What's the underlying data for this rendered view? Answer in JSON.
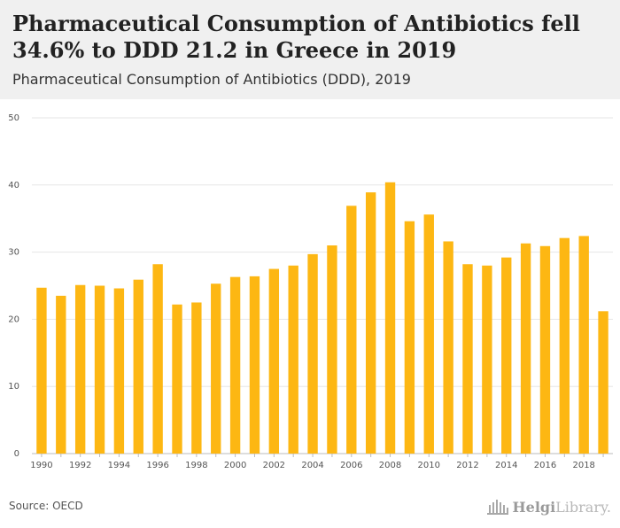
{
  "header": {
    "title": "Pharmaceutical Consumption of Antibiotics fell 34.6% to DDD 21.2 in Greece in 2019",
    "subtitle": "Pharmaceutical Consumption of Antibiotics (DDD), 2019"
  },
  "footer": {
    "source": "Source: OECD",
    "logo_text_part1": "Helgi",
    "logo_text_part2": "Library."
  },
  "colors": {
    "bar": "#FDB713",
    "grid": "#e6e6e6",
    "header_bg": "#f0f0f0"
  },
  "chart_data": {
    "type": "bar",
    "title": "Pharmaceutical Consumption of Antibiotics fell 34.6% to DDD 21.2 in Greece in 2019",
    "subtitle": "Pharmaceutical Consumption of Antibiotics (DDD), 2019",
    "categories": [
      1990,
      1991,
      1992,
      1993,
      1994,
      1995,
      1996,
      1997,
      1998,
      1999,
      2000,
      2001,
      2002,
      2003,
      2004,
      2005,
      2006,
      2007,
      2008,
      2009,
      2010,
      2011,
      2012,
      2013,
      2014,
      2015,
      2016,
      2017,
      2018,
      2019
    ],
    "values": [
      24.7,
      23.5,
      25.1,
      25.0,
      24.6,
      25.9,
      28.2,
      22.2,
      22.5,
      25.3,
      26.3,
      26.4,
      27.5,
      28.0,
      29.7,
      31.0,
      36.9,
      38.9,
      40.4,
      34.6,
      35.6,
      31.6,
      28.2,
      28.0,
      29.2,
      31.3,
      30.9,
      32.1,
      32.4,
      21.2
    ],
    "ylim": [
      0,
      50
    ],
    "yticks": [
      0,
      10,
      20,
      30,
      40,
      50
    ],
    "xtick_labels": [
      "1990",
      "1992",
      "1994",
      "1996",
      "1998",
      "2000",
      "2002",
      "2004",
      "2006",
      "2008",
      "2010",
      "2012",
      "2014",
      "2016",
      "2018"
    ],
    "grid": true,
    "legend": "none"
  }
}
